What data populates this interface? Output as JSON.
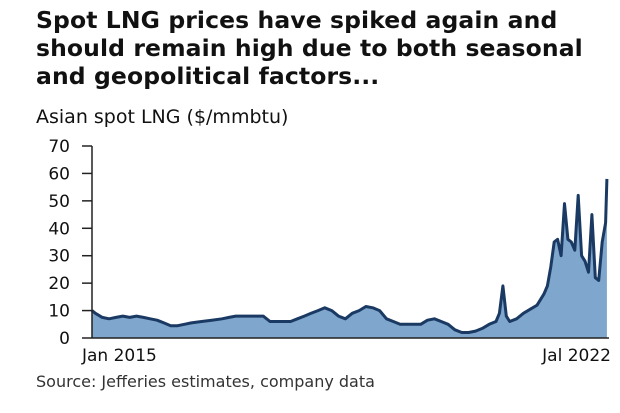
{
  "title": "Spot LNG prices have spiked again and should remain high due to both seasonal and geopolitical factors...",
  "subtitle": "Asian spot LNG ($/mmbtu)",
  "source": "Source: Jefferies estimates, company data",
  "colors": {
    "fill": "#7fa6cc",
    "line": "#1a3a63",
    "axis": "#222222"
  },
  "chart_data": {
    "type": "area",
    "title": "Spot LNG prices have spiked again and should remain high due to both seasonal and geopolitical factors...",
    "ylabel": "Asian spot LNG ($/mmbtu)",
    "xlabel": "",
    "ylim": [
      0,
      70
    ],
    "yticks": [
      0,
      10,
      20,
      30,
      40,
      50,
      60,
      70
    ],
    "xlim": [
      2015.0,
      2022.55
    ],
    "xtick_labels": [
      {
        "x": 2015.0,
        "label": "Jan 2015"
      },
      {
        "x": 2022.5,
        "label": "Jal 2022"
      }
    ],
    "grid": false,
    "series": [
      {
        "x": [
          2015.0,
          2015.05,
          2015.15,
          2015.25,
          2015.35,
          2015.45,
          2015.55,
          2015.65,
          2015.75,
          2015.85,
          2015.95,
          2016.05,
          2016.15,
          2016.25,
          2016.35,
          2016.45,
          2016.6,
          2016.75,
          2016.9,
          2017.0,
          2017.1,
          2017.2,
          2017.3,
          2017.4,
          2017.5,
          2017.6,
          2017.7,
          2017.8,
          2017.9,
          2018.0,
          2018.1,
          2018.2,
          2018.3,
          2018.4,
          2018.5,
          2018.6,
          2018.7,
          2018.8,
          2018.9,
          2019.0,
          2019.1,
          2019.2,
          2019.3,
          2019.4,
          2019.5,
          2019.6,
          2019.7,
          2019.8,
          2019.9,
          2020.0,
          2020.1,
          2020.2,
          2020.3,
          2020.4,
          2020.5,
          2020.6,
          2020.7,
          2020.8,
          2020.9,
          2020.95,
          2021.0,
          2021.05,
          2021.1,
          2021.2,
          2021.3,
          2021.4,
          2021.5,
          2021.55,
          2021.6,
          2021.65,
          2021.7,
          2021.75,
          2021.8,
          2021.85,
          2021.9,
          2021.95,
          2022.0,
          2022.05,
          2022.1,
          2022.15,
          2022.2,
          2022.25,
          2022.3,
          2022.35,
          2022.4,
          2022.45,
          2022.5,
          2022.52
        ],
        "values": [
          10,
          9,
          7.5,
          7,
          7.5,
          8,
          7.5,
          8,
          7.5,
          7,
          6.5,
          5.5,
          4.5,
          4.5,
          5,
          5.5,
          6,
          6.5,
          7,
          7.5,
          8,
          8,
          8,
          8,
          8,
          6,
          6,
          6,
          6,
          7,
          8,
          9,
          10,
          11,
          10,
          8,
          7,
          9,
          10,
          11.5,
          11,
          10,
          7,
          6,
          5,
          5,
          5,
          5,
          6.5,
          7,
          6,
          5,
          3,
          2,
          2,
          2.5,
          3.5,
          5,
          6,
          9,
          19,
          8,
          6,
          7,
          9,
          10.5,
          12,
          14,
          16,
          19,
          26,
          35,
          36,
          30,
          49,
          36,
          35,
          32,
          52,
          30,
          28,
          24,
          45,
          22,
          21,
          35,
          42,
          58
        ]
      }
    ]
  }
}
